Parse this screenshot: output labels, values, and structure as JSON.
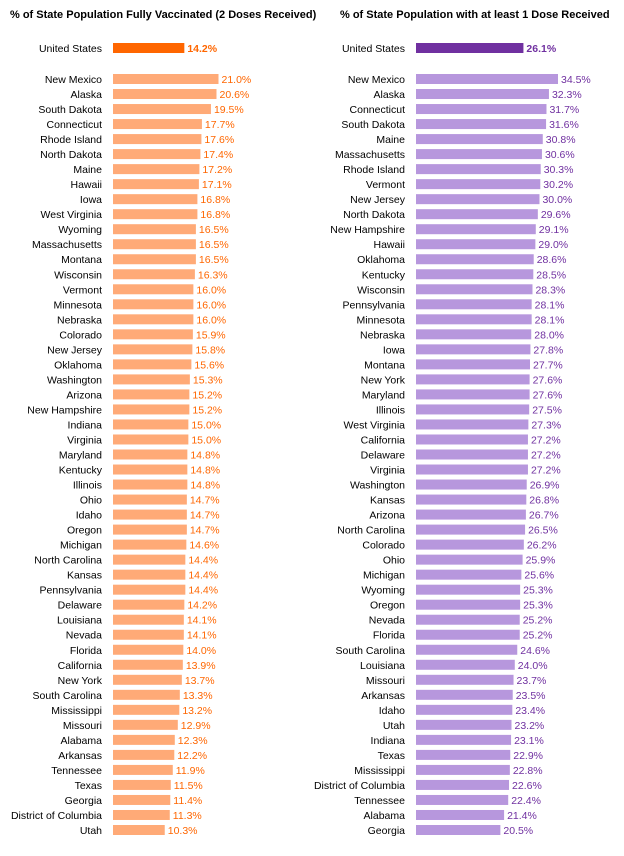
{
  "colors": {
    "left_us": "#FF6600",
    "left_bar": "#FFAA77",
    "right_us": "#7030A0",
    "right_bar": "#B797DD"
  },
  "chart_data": [
    {
      "type": "bar",
      "orientation": "horizontal",
      "title": "% of State Population Fully Vaccinated (2 Doses Received)",
      "highlight": {
        "category": "United States",
        "value": 14.2,
        "label": "14.2%"
      },
      "categories": [
        "New Mexico",
        "Alaska",
        "South Dakota",
        "Connecticut",
        "Rhode Island",
        "North Dakota",
        "Maine",
        "Hawaii",
        "Iowa",
        "West Virginia",
        "Wyoming",
        "Massachusetts",
        "Montana",
        "Wisconsin",
        "Vermont",
        "Minnesota",
        "Nebraska",
        "Colorado",
        "New Jersey",
        "Oklahoma",
        "Washington",
        "Arizona",
        "New Hampshire",
        "Indiana",
        "Virginia",
        "Maryland",
        "Kentucky",
        "Illinois",
        "Ohio",
        "Idaho",
        "Oregon",
        "Michigan",
        "North Carolina",
        "Kansas",
        "Pennsylvania",
        "Delaware",
        "Louisiana",
        "Nevada",
        "Florida",
        "California",
        "New York",
        "South Carolina",
        "Mississippi",
        "Missouri",
        "Alabama",
        "Arkansas",
        "Tennessee",
        "Texas",
        "Georgia",
        "District of Columbia",
        "Utah"
      ],
      "values": [
        21.0,
        20.6,
        19.5,
        17.7,
        17.6,
        17.4,
        17.2,
        17.1,
        16.8,
        16.8,
        16.5,
        16.5,
        16.5,
        16.3,
        16.0,
        16.0,
        16.0,
        15.9,
        15.8,
        15.6,
        15.3,
        15.2,
        15.2,
        15.0,
        15.0,
        14.8,
        14.8,
        14.8,
        14.7,
        14.7,
        14.7,
        14.6,
        14.4,
        14.4,
        14.4,
        14.2,
        14.1,
        14.1,
        14.0,
        13.9,
        13.7,
        13.3,
        13.2,
        12.9,
        12.3,
        12.2,
        11.9,
        11.5,
        11.4,
        11.3,
        10.3
      ],
      "labels": [
        "21.0%",
        "20.6%",
        "19.5%",
        "17.7%",
        "17.6%",
        "17.4%",
        "17.2%",
        "17.1%",
        "16.8%",
        "16.8%",
        "16.5%",
        "16.5%",
        "16.5%",
        "16.3%",
        "16.0%",
        "16.0%",
        "16.0%",
        "15.9%",
        "15.8%",
        "15.6%",
        "15.3%",
        "15.2%",
        "15.2%",
        "15.0%",
        "15.0%",
        "14.8%",
        "14.8%",
        "14.8%",
        "14.7%",
        "14.7%",
        "14.7%",
        "14.6%",
        "14.4%",
        "14.4%",
        "14.4%",
        "14.2%",
        "14.1%",
        "14.1%",
        "14.0%",
        "13.9%",
        "13.7%",
        "13.3%",
        "13.2%",
        "12.9%",
        "12.3%",
        "12.2%",
        "11.9%",
        "11.5%",
        "11.4%",
        "11.3%",
        "10.3%"
      ]
    },
    {
      "type": "bar",
      "orientation": "horizontal",
      "title": "% of State Population with at least 1 Dose Received",
      "highlight": {
        "category": "United States",
        "value": 26.1,
        "label": "26.1%"
      },
      "categories": [
        "New Mexico",
        "Alaska",
        "Connecticut",
        "South Dakota",
        "Maine",
        "Massachusetts",
        "Rhode Island",
        "Vermont",
        "New Jersey",
        "North Dakota",
        "New Hampshire",
        "Hawaii",
        "Oklahoma",
        "Kentucky",
        "Wisconsin",
        "Pennsylvania",
        "Minnesota",
        "Nebraska",
        "Iowa",
        "Montana",
        "New York",
        "Maryland",
        "Illinois",
        "West Virginia",
        "California",
        "Delaware",
        "Virginia",
        "Washington",
        "Kansas",
        "Arizona",
        "North Carolina",
        "Colorado",
        "Ohio",
        "Michigan",
        "Wyoming",
        "Oregon",
        "Nevada",
        "Florida",
        "South Carolina",
        "Louisiana",
        "Missouri",
        "Arkansas",
        "Idaho",
        "Utah",
        "Indiana",
        "Texas",
        "Mississippi",
        "District of Columbia",
        "Tennessee",
        "Alabama",
        "Georgia"
      ],
      "values": [
        34.5,
        32.3,
        31.7,
        31.6,
        30.8,
        30.6,
        30.3,
        30.2,
        30.0,
        29.6,
        29.1,
        29.0,
        28.6,
        28.5,
        28.3,
        28.1,
        28.1,
        28.0,
        27.8,
        27.7,
        27.6,
        27.6,
        27.5,
        27.3,
        27.2,
        27.2,
        27.2,
        26.9,
        26.8,
        26.7,
        26.5,
        26.2,
        25.9,
        25.6,
        25.3,
        25.3,
        25.2,
        25.2,
        24.6,
        24.0,
        23.7,
        23.5,
        23.4,
        23.2,
        23.1,
        22.9,
        22.8,
        22.6,
        22.4,
        21.4,
        20.5
      ],
      "labels": [
        "34.5%",
        "32.3%",
        "31.7%",
        "31.6%",
        "30.8%",
        "30.6%",
        "30.3%",
        "30.2%",
        "30.0%",
        "29.6%",
        "29.1%",
        "29.0%",
        "28.6%",
        "28.5%",
        "28.3%",
        "28.1%",
        "28.1%",
        "28.0%",
        "27.8%",
        "27.7%",
        "27.6%",
        "27.6%",
        "27.5%",
        "27.3%",
        "27.2%",
        "27.2%",
        "27.2%",
        "26.9%",
        "26.8%",
        "26.7%",
        "26.5%",
        "26.2%",
        "25.9%",
        "25.6%",
        "25.3%",
        "25.3%",
        "25.2%",
        "25.2%",
        "24.6%",
        "24.0%",
        "23.7%",
        "23.5%",
        "23.4%",
        "23.2%",
        "23.1%",
        "22.9%",
        "22.8%",
        "22.6%",
        "22.4%",
        "21.4%",
        "20.5%"
      ]
    }
  ]
}
